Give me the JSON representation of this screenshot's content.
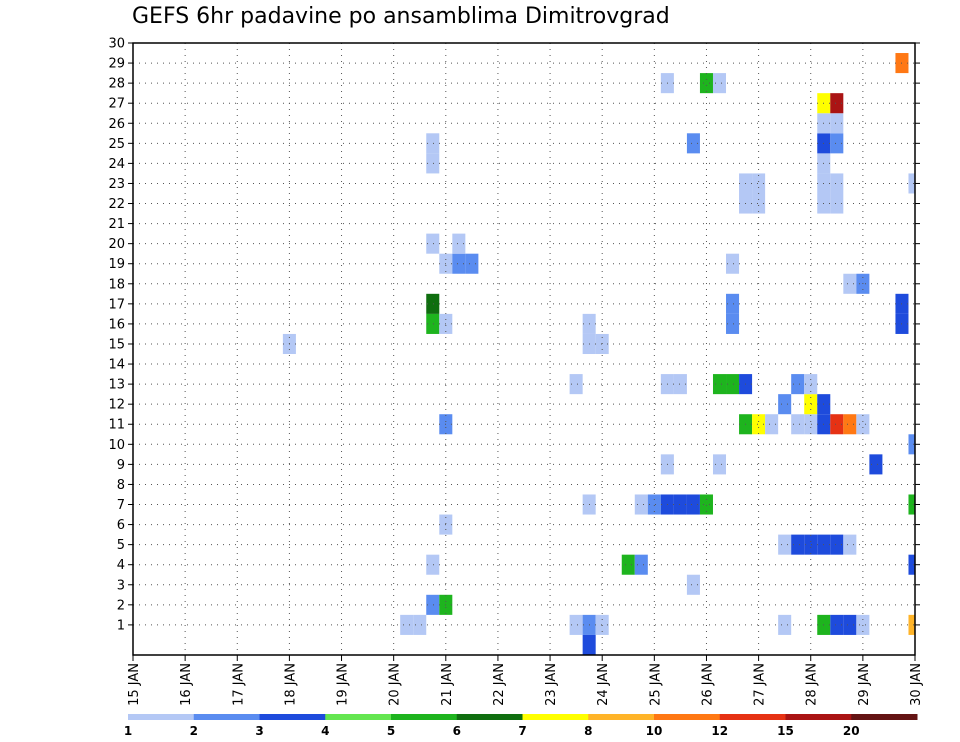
{
  "chart_data": {
    "type": "heatmap",
    "title": "GEFS 6hr padavine po ansamblima Dimitrovgrad",
    "xlabel": "",
    "ylabel": "",
    "x_tick_labels": [
      "15 JAN",
      "16 JAN",
      "17 JAN",
      "18 JAN",
      "19 JAN",
      "20 JAN",
      "21 JAN",
      "22 JAN",
      "23 JAN",
      "24 JAN",
      "25 JAN",
      "26 JAN",
      "27 JAN",
      "28 JAN",
      "29 JAN",
      "30 JAN"
    ],
    "x_range_days": [
      0,
      15
    ],
    "y_members": [
      1,
      2,
      3,
      4,
      5,
      6,
      7,
      8,
      9,
      10,
      11,
      12,
      13,
      14,
      15,
      16,
      17,
      18,
      19,
      20,
      21,
      22,
      23,
      24,
      25,
      26,
      27,
      28,
      29,
      30
    ],
    "grid": true,
    "color_scale": {
      "labels": [
        "1",
        "2",
        "3",
        "4",
        "5",
        "6",
        "7",
        "8",
        "10",
        "12",
        "15",
        "20"
      ],
      "colors": [
        "#b4c8f5",
        "#5a8cf0",
        "#1e4bdc",
        "#64e650",
        "#1eb41e",
        "#0f6e0f",
        "#ffff00",
        "#ffb428",
        "#ff7814",
        "#e63214",
        "#aa1414",
        "#641414"
      ]
    },
    "cells": [
      [
        5.25,
        1,
        0
      ],
      [
        5.5,
        1,
        0
      ],
      [
        8.5,
        1,
        0
      ],
      [
        8.75,
        1,
        1
      ],
      [
        9.0,
        1,
        0
      ],
      [
        12.5,
        1,
        0
      ],
      [
        13.25,
        1,
        4
      ],
      [
        13.5,
        1,
        2
      ],
      [
        13.75,
        1,
        2
      ],
      [
        14.0,
        1,
        0
      ],
      [
        15.0,
        1,
        7
      ],
      [
        8.75,
        0,
        2
      ],
      [
        5.75,
        2,
        1
      ],
      [
        6.0,
        2,
        4
      ],
      [
        10.75,
        3,
        0
      ],
      [
        5.75,
        4,
        0
      ],
      [
        9.5,
        4,
        4
      ],
      [
        9.75,
        4,
        1
      ],
      [
        15.0,
        4,
        2
      ],
      [
        12.5,
        5,
        0
      ],
      [
        12.75,
        5,
        2
      ],
      [
        13.0,
        5,
        2
      ],
      [
        13.25,
        5,
        2
      ],
      [
        13.5,
        5,
        2
      ],
      [
        13.75,
        5,
        0
      ],
      [
        6.0,
        6,
        0
      ],
      [
        8.75,
        7,
        0
      ],
      [
        9.75,
        7,
        0
      ],
      [
        10.0,
        7,
        1
      ],
      [
        10.25,
        7,
        2
      ],
      [
        10.5,
        7,
        2
      ],
      [
        10.75,
        7,
        2
      ],
      [
        11.0,
        7,
        4
      ],
      [
        15.0,
        7,
        4
      ],
      [
        10.25,
        9,
        0
      ],
      [
        11.25,
        9,
        0
      ],
      [
        14.25,
        9,
        2
      ],
      [
        15.0,
        10,
        1
      ],
      [
        6.0,
        11,
        1
      ],
      [
        11.75,
        11,
        4
      ],
      [
        12.0,
        11,
        6
      ],
      [
        12.25,
        11,
        0
      ],
      [
        12.75,
        11,
        0
      ],
      [
        13.0,
        11,
        0
      ],
      [
        13.25,
        11,
        2
      ],
      [
        13.5,
        11,
        9
      ],
      [
        13.75,
        11,
        8
      ],
      [
        14.0,
        11,
        0
      ],
      [
        12.5,
        12,
        1
      ],
      [
        13.0,
        12,
        6
      ],
      [
        13.25,
        12,
        2
      ],
      [
        11.25,
        13,
        4
      ],
      [
        11.5,
        13,
        4
      ],
      [
        11.75,
        13,
        2
      ],
      [
        12.75,
        13,
        1
      ],
      [
        13.0,
        13,
        0
      ],
      [
        10.25,
        13,
        0
      ],
      [
        10.5,
        13,
        0
      ],
      [
        8.5,
        13,
        0
      ],
      [
        3.0,
        15,
        0
      ],
      [
        8.75,
        15,
        0
      ],
      [
        9.0,
        15,
        0
      ],
      [
        5.75,
        16,
        4
      ],
      [
        6.0,
        16,
        0
      ],
      [
        8.75,
        16,
        0
      ],
      [
        11.5,
        16,
        1
      ],
      [
        14.75,
        16,
        2
      ],
      [
        5.75,
        17,
        5
      ],
      [
        11.5,
        17,
        1
      ],
      [
        14.75,
        17,
        2
      ],
      [
        13.75,
        18,
        0
      ],
      [
        14.0,
        18,
        1
      ],
      [
        6.0,
        19,
        0
      ],
      [
        6.25,
        19,
        1
      ],
      [
        6.5,
        19,
        1
      ],
      [
        11.5,
        19,
        0
      ],
      [
        5.75,
        20,
        0
      ],
      [
        6.25,
        20,
        0
      ],
      [
        11.75,
        22,
        0
      ],
      [
        12.0,
        22,
        0
      ],
      [
        13.25,
        22,
        0
      ],
      [
        13.5,
        22,
        0
      ],
      [
        11.75,
        23,
        0
      ],
      [
        12.0,
        23,
        0
      ],
      [
        13.25,
        23,
        0
      ],
      [
        13.5,
        23,
        0
      ],
      [
        15.0,
        23,
        0
      ],
      [
        5.75,
        24,
        0
      ],
      [
        13.25,
        24,
        0
      ],
      [
        5.75,
        25,
        0
      ],
      [
        10.75,
        25,
        1
      ],
      [
        13.25,
        25,
        2
      ],
      [
        13.5,
        25,
        1
      ],
      [
        13.25,
        26,
        0
      ],
      [
        13.5,
        26,
        0
      ],
      [
        13.25,
        27,
        6
      ],
      [
        13.5,
        27,
        10
      ],
      [
        10.25,
        28,
        0
      ],
      [
        11.0,
        28,
        4
      ],
      [
        11.25,
        28,
        0
      ],
      [
        14.75,
        29,
        8
      ]
    ]
  }
}
